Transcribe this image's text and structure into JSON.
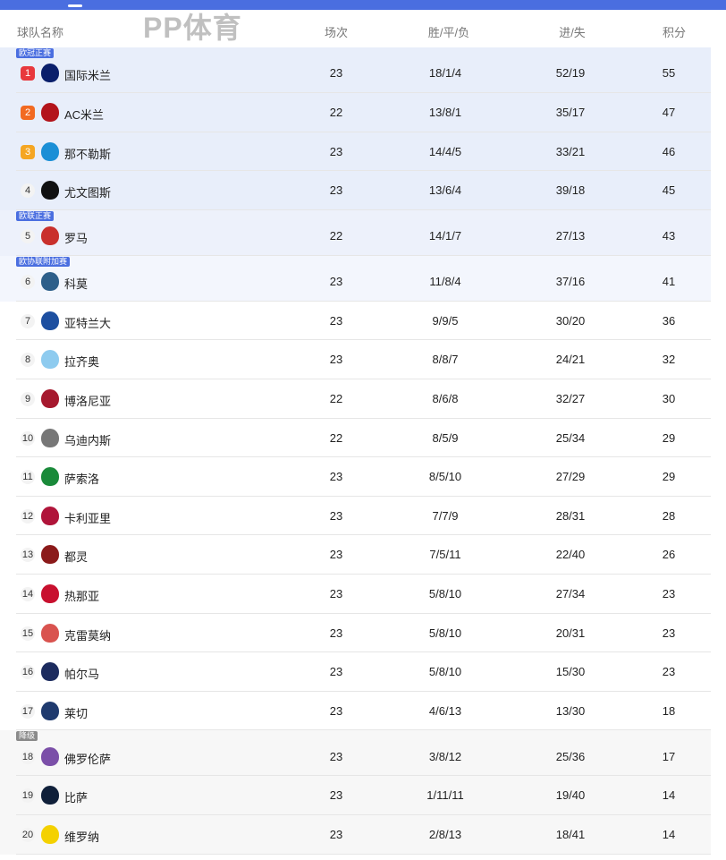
{
  "header": {
    "team": "球队名称",
    "games": "场次",
    "wdl": "胜/平/负",
    "goals": "进/失",
    "points": "积分"
  },
  "zones": {
    "cl": "欧冠正赛",
    "el": "欧联正赛",
    "ecl": "欧协联附加赛",
    "rel": "降级"
  },
  "colors": {
    "accent": "#4a6ee0",
    "rank1": "#e8383d",
    "rank2": "#f26a21",
    "rank3": "#f5a623"
  },
  "teams": [
    {
      "rank": "1",
      "name": "国际米兰",
      "games": "23",
      "wdl": "18/1/4",
      "goals": "52/19",
      "points": "55",
      "zone": "cl",
      "badge": "欧冠正赛",
      "crest": "#0a1f6b"
    },
    {
      "rank": "2",
      "name": "AC米兰",
      "games": "22",
      "wdl": "13/8/1",
      "goals": "35/17",
      "points": "47",
      "zone": "cl",
      "crest": "#b3141b"
    },
    {
      "rank": "3",
      "name": "那不勒斯",
      "games": "23",
      "wdl": "14/4/5",
      "goals": "33/21",
      "points": "46",
      "zone": "cl",
      "crest": "#1b8fd6"
    },
    {
      "rank": "4",
      "name": "尤文图斯",
      "games": "23",
      "wdl": "13/6/4",
      "goals": "39/18",
      "points": "45",
      "zone": "cl",
      "crest": "#111111"
    },
    {
      "rank": "5",
      "name": "罗马",
      "games": "22",
      "wdl": "14/1/7",
      "goals": "27/13",
      "points": "43",
      "zone": "el",
      "badge": "欧联正赛",
      "crest": "#c9302c"
    },
    {
      "rank": "6",
      "name": "科莫",
      "games": "23",
      "wdl": "11/8/4",
      "goals": "37/16",
      "points": "41",
      "zone": "ecl",
      "badge": "欧协联附加赛",
      "crest": "#2e5f8a"
    },
    {
      "rank": "7",
      "name": "亚特兰大",
      "games": "23",
      "wdl": "9/9/5",
      "goals": "30/20",
      "points": "36",
      "crest": "#1d4fa0"
    },
    {
      "rank": "8",
      "name": "拉齐奥",
      "games": "23",
      "wdl": "8/8/7",
      "goals": "24/21",
      "points": "32",
      "crest": "#8ecbef"
    },
    {
      "rank": "9",
      "name": "博洛尼亚",
      "games": "22",
      "wdl": "8/6/8",
      "goals": "32/27",
      "points": "30",
      "crest": "#a6192e"
    },
    {
      "rank": "10",
      "name": "乌迪内斯",
      "games": "22",
      "wdl": "8/5/9",
      "goals": "25/34",
      "points": "29",
      "crest": "#777777"
    },
    {
      "rank": "11",
      "name": "萨索洛",
      "games": "23",
      "wdl": "8/5/10",
      "goals": "27/29",
      "points": "29",
      "crest": "#1a8a3a"
    },
    {
      "rank": "12",
      "name": "卡利亚里",
      "games": "23",
      "wdl": "7/7/9",
      "goals": "28/31",
      "points": "28",
      "crest": "#b0143a"
    },
    {
      "rank": "13",
      "name": "都灵",
      "games": "23",
      "wdl": "7/5/11",
      "goals": "22/40",
      "points": "26",
      "crest": "#8b1a1a"
    },
    {
      "rank": "14",
      "name": "热那亚",
      "games": "23",
      "wdl": "5/8/10",
      "goals": "27/34",
      "points": "23",
      "crest": "#c8102e"
    },
    {
      "rank": "15",
      "name": "克雷莫纳",
      "games": "23",
      "wdl": "5/8/10",
      "goals": "20/31",
      "points": "23",
      "crest": "#d9534f"
    },
    {
      "rank": "16",
      "name": "帕尔马",
      "games": "23",
      "wdl": "5/8/10",
      "goals": "15/30",
      "points": "23",
      "crest": "#1c2b5e"
    },
    {
      "rank": "17",
      "name": "莱切",
      "games": "23",
      "wdl": "4/6/13",
      "goals": "13/30",
      "points": "18",
      "crest": "#1f3a6e"
    },
    {
      "rank": "18",
      "name": "佛罗伦萨",
      "games": "23",
      "wdl": "3/8/12",
      "goals": "25/36",
      "points": "17",
      "zone": "rel",
      "badge": "降级",
      "crest": "#7b4fa8"
    },
    {
      "rank": "19",
      "name": "比萨",
      "games": "23",
      "wdl": "1/11/11",
      "goals": "19/40",
      "points": "14",
      "zone": "rel",
      "crest": "#10203a"
    },
    {
      "rank": "20",
      "name": "维罗纳",
      "games": "23",
      "wdl": "2/8/13",
      "goals": "18/41",
      "points": "14",
      "zone": "rel",
      "crest": "#f4d100"
    }
  ],
  "watermark": "PP体育"
}
